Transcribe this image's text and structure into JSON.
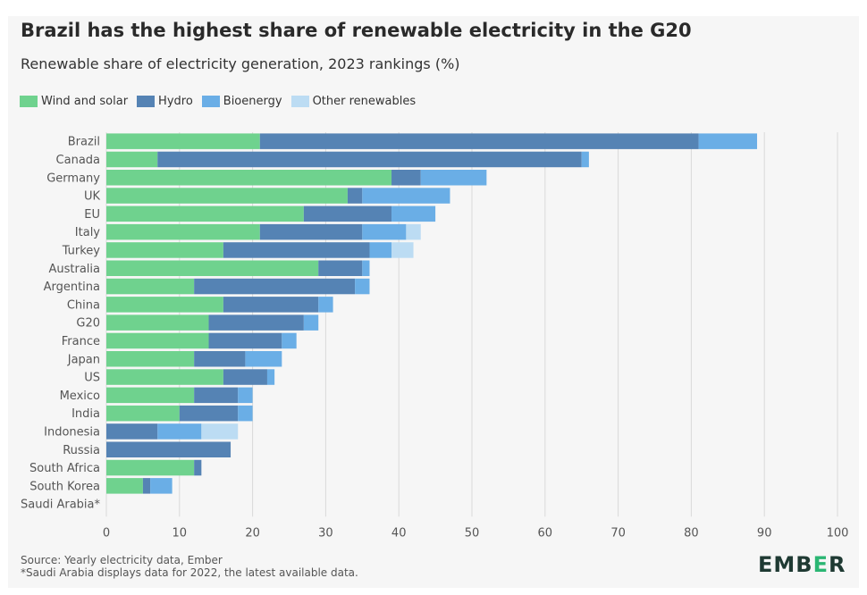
{
  "title": "Brazil has the highest share of renewable electricity in the G20",
  "subtitle": "Renewable share of electricity generation, 2023 rankings (%)",
  "footer": {
    "source": "Source: Yearly electricity data, Ember",
    "note": "*Saudi Arabia displays data for 2022, the latest available data.",
    "logo_left": "EMB",
    "logo_mid": "E",
    "logo_right": "R"
  },
  "chart_data": {
    "type": "bar",
    "orientation": "horizontal",
    "stacked": true,
    "categories": [
      "Brazil",
      "Canada",
      "Germany",
      "UK",
      "EU",
      "Italy",
      "Turkey",
      "Australia",
      "Argentina",
      "China",
      "G20",
      "France",
      "Japan",
      "US",
      "Mexico",
      "India",
      "Indonesia",
      "Russia",
      "South Africa",
      "South Korea",
      "Saudi Arabia*"
    ],
    "series": [
      {
        "name": "Wind and solar",
        "color": "#6fd28e",
        "values": [
          21,
          7,
          39,
          33,
          27,
          21,
          16,
          29,
          12,
          16,
          14,
          14,
          12,
          16,
          12,
          10,
          0,
          0,
          12,
          5,
          0
        ]
      },
      {
        "name": "Hydro",
        "color": "#5583b4",
        "values": [
          60,
          58,
          4,
          2,
          12,
          14,
          20,
          6,
          22,
          13,
          13,
          10,
          7,
          6,
          6,
          8,
          7,
          17,
          1,
          1,
          0
        ]
      },
      {
        "name": "Bioenergy",
        "color": "#6aaee6",
        "values": [
          8,
          1,
          9,
          12,
          6,
          6,
          3,
          1,
          2,
          2,
          2,
          2,
          5,
          1,
          2,
          2,
          6,
          0,
          0,
          3,
          0
        ]
      },
      {
        "name": "Other renewables",
        "color": "#bcdcf3",
        "values": [
          0,
          0,
          0,
          0,
          0,
          2,
          3,
          0,
          0,
          0,
          0,
          0,
          0,
          0,
          0,
          0,
          5,
          0,
          0,
          0,
          0
        ]
      }
    ],
    "xlim": [
      0,
      100
    ],
    "xticks": [
      0,
      10,
      20,
      30,
      40,
      50,
      60,
      70,
      80,
      90,
      100
    ],
    "grid": true,
    "legend": "top-left"
  }
}
